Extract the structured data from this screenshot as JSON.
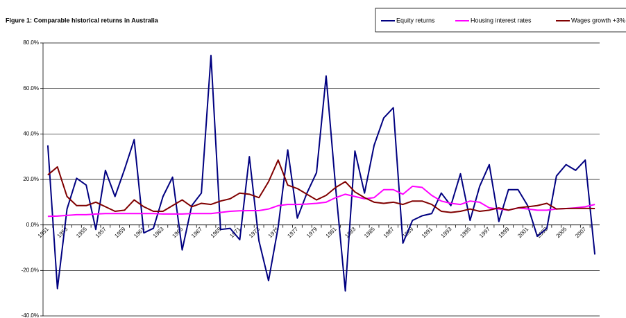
{
  "chart_data": {
    "type": "line",
    "title": "Figure 1: Comparable historical returns in Australia",
    "categories": [
      "1951",
      null,
      "1953",
      null,
      "1955",
      null,
      "1957",
      null,
      "1959",
      null,
      "1961",
      null,
      "1963",
      null,
      "1965",
      null,
      "1967",
      null,
      "1969",
      null,
      "1971",
      null,
      "1973",
      null,
      "1975",
      null,
      "1977",
      null,
      "1979",
      null,
      "1981",
      null,
      "1983",
      null,
      "1985",
      null,
      "1987",
      null,
      "1989",
      null,
      "1991",
      null,
      "1993",
      null,
      "1995",
      null,
      "1997",
      null,
      "1999",
      null,
      "2001",
      null,
      "2003",
      null,
      "2005",
      null,
      "2007",
      null
    ],
    "series": [
      {
        "name": "Equity returns",
        "color": "#000080",
        "values": [
          35,
          -28,
          7,
          20.5,
          17.5,
          -2,
          24,
          12.5,
          24.5,
          37.5,
          -3.5,
          -1.5,
          12.5,
          21,
          -11,
          8.5,
          14,
          74.5,
          -2,
          -1.5,
          -6.5,
          30,
          -7,
          -24.5,
          -1,
          33,
          3,
          14,
          23,
          65.5,
          16,
          -29,
          32.5,
          14,
          35,
          47,
          51.5,
          -8,
          2,
          4,
          5,
          14,
          8.5,
          22.5,
          2,
          17,
          26.5,
          1.5,
          15.5,
          15.5,
          8.5,
          -5,
          -1.5,
          21.5,
          26.5,
          24,
          28.5,
          -13
        ]
      },
      {
        "name": "Housing interest rates",
        "color": "#ff00ff",
        "values": [
          3.8,
          3.9,
          4.2,
          4.5,
          4.5,
          4.8,
          5,
          5,
          5,
          5,
          5,
          5,
          4.8,
          4.8,
          4.8,
          5,
          5,
          5,
          5.5,
          6,
          6.2,
          6.3,
          6.3,
          7,
          8.5,
          9,
          9,
          9.2,
          9.5,
          10,
          12,
          13.5,
          12.5,
          11.5,
          12,
          15.5,
          15.5,
          13.5,
          17,
          16.5,
          13,
          10.5,
          9.5,
          9,
          10.5,
          10,
          7.5,
          7,
          6.5,
          7.5,
          7,
          6.5,
          6.5,
          7,
          7.2,
          7.5,
          8,
          9
        ]
      },
      {
        "name": "Wages growth +3%",
        "color": "#800000",
        "values": [
          22,
          25.5,
          12.5,
          8.5,
          8.5,
          10,
          8,
          6,
          6.5,
          11,
          8,
          6,
          6,
          8.5,
          11,
          8,
          9.5,
          9,
          10.5,
          11.5,
          14,
          13.5,
          12,
          19,
          28.5,
          17.5,
          16,
          13.5,
          11,
          13,
          16.5,
          19,
          14.5,
          12,
          10,
          9.5,
          10,
          9,
          10.5,
          10.5,
          9,
          6,
          5.5,
          6,
          7,
          6,
          6.5,
          7.5,
          6.5,
          7.5,
          8,
          8.5,
          9.5,
          7,
          7.2,
          7.3,
          7.3,
          7.2
        ]
      }
    ],
    "ylim": [
      -40,
      80
    ],
    "yticks": [
      {
        "value": -40,
        "label": "-40.0%"
      },
      {
        "value": -20,
        "label": "-20.0%"
      },
      {
        "value": 0,
        "label": "0.0%"
      },
      {
        "value": 20,
        "label": "20.0%"
      },
      {
        "value": 40,
        "label": "40.0%"
      },
      {
        "value": 60,
        "label": "60.0%"
      },
      {
        "value": 80,
        "label": "80.0%"
      }
    ],
    "grid": true,
    "legend": "top-right"
  }
}
